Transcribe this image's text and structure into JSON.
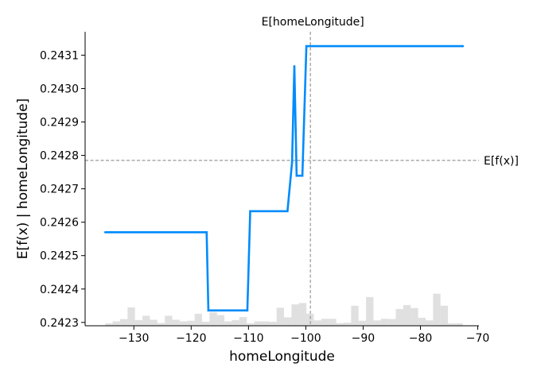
{
  "chart_data": {
    "type": "line",
    "title": "",
    "xlabel": "homeLongitude",
    "ylabel": "E[f(x) | homeLongitude]",
    "xlim": [
      -138.5,
      -69.8
    ],
    "ylim": [
      0.24229,
      0.24317
    ],
    "x_ticks": [
      -130,
      -120,
      -110,
      -100,
      -90,
      -80,
      -70
    ],
    "x_tick_labels": [
      "−130",
      "−120",
      "−110",
      "−100",
      "−90",
      "−80",
      "−70"
    ],
    "y_ticks": [
      0.2423,
      0.2424,
      0.2425,
      0.2426,
      0.2427,
      0.2428,
      0.2429,
      0.243,
      0.2431
    ],
    "y_tick_labels": [
      "0.2423",
      "0.2424",
      "0.2425",
      "0.2426",
      "0.2427",
      "0.2428",
      "0.2429",
      "0.2430",
      "0.2431"
    ],
    "grid": false,
    "series": [
      {
        "color": "#008bfb",
        "x": [
          -135,
          -117.3,
          -117.0,
          -110.2,
          -109.7,
          -103.2,
          -102.4,
          -102.0,
          -101.6,
          -100.6,
          -99.9,
          -72.6
        ],
        "y": [
          0.24257,
          0.24257,
          0.242336,
          0.242336,
          0.242633,
          0.242633,
          0.242779,
          0.243067,
          0.242739,
          0.242739,
          0.243127,
          0.243127
        ]
      }
    ],
    "histogram": {
      "color": "#cccccc",
      "bin_edges": [
        -135,
        -133.7,
        -132.4,
        -131.1,
        -129.8,
        -128.5,
        -127.2,
        -125.9,
        -124.6,
        -123.3,
        -122.0,
        -120.7,
        -119.4,
        -118.1,
        -116.8,
        -115.5,
        -114.2,
        -112.9,
        -111.6,
        -110.3,
        -109.0,
        -107.7,
        -106.4,
        -105.1,
        -103.8,
        -102.5,
        -101.2,
        -99.9,
        -98.6,
        -97.3,
        -96.0,
        -94.7,
        -93.4,
        -92.1,
        -90.8,
        -89.5,
        -88.2,
        -86.9,
        -85.6,
        -84.3,
        -83.0,
        -81.7,
        -80.4,
        -79.1,
        -77.8,
        -76.5,
        -75.2,
        -73.9,
        -72.6
      ],
      "heights": [
        0.242297,
        0.242303,
        0.24231,
        0.242345,
        0.242307,
        0.24232,
        0.242308,
        0.242298,
        0.24232,
        0.242308,
        0.242303,
        0.242305,
        0.242326,
        0.242302,
        0.242331,
        0.242322,
        0.242303,
        0.242307,
        0.242316,
        0.242297,
        0.242303,
        0.242303,
        0.242302,
        0.242344,
        0.242315,
        0.242354,
        0.242358,
        0.242326,
        0.242306,
        0.242311,
        0.242311,
        0.242298,
        0.242299,
        0.24235,
        0.242305,
        0.242376,
        0.242306,
        0.242311,
        0.24231,
        0.24234,
        0.242352,
        0.242343,
        0.242314,
        0.242306,
        0.242386,
        0.24235,
        0.242297,
        0.242297
      ]
    },
    "reference_lines": [
      {
        "orientation": "horizontal",
        "value": 0.242785,
        "label": "E[f(x)]"
      },
      {
        "orientation": "vertical",
        "value": -99.2,
        "label": "E[homeLongitude]"
      }
    ]
  }
}
